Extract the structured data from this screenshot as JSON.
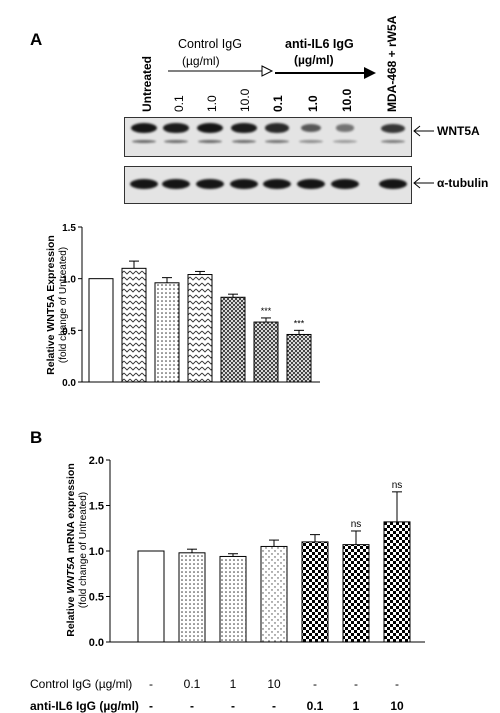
{
  "panel_a": {
    "letter": "A",
    "untreated_label": "Untreated",
    "control_group": "Control IgG",
    "control_unit": "(µg/ml)",
    "anti_group": "anti-IL6 IgG",
    "anti_unit": "(µg/ml)",
    "control_concs": [
      "0.1",
      "1.0",
      "10.0"
    ],
    "anti_concs": [
      "0.1",
      "1.0",
      "10.0"
    ],
    "last_lane_label": "MDA-468 + rW5A",
    "blot_labels": [
      "WNT5A",
      "α-tubulin"
    ],
    "wnt5a_band_intensity": [
      1.0,
      0.95,
      1.0,
      0.95,
      0.85,
      0.5,
      0.3,
      0.75
    ],
    "tubulin_band_intensity": [
      1.0,
      1.0,
      1.0,
      1.0,
      1.0,
      1.0,
      1.0,
      1.0
    ]
  },
  "panel_b": {
    "letter": "B",
    "row_labels": [
      "Control IgG (µg/ml)",
      "anti-IL6 IgG (µg/ml)"
    ],
    "control_row": [
      "-",
      "0.1",
      "1",
      "10",
      "-",
      "-",
      "-"
    ],
    "anti_row": [
      "-",
      "-",
      "-",
      "-",
      "0.1",
      "1",
      "10"
    ]
  },
  "chart_data": [
    {
      "type": "bar",
      "ylabel_line1": "Relative WNT5A Expression",
      "ylabel_line2": "(fold change of Untreated)",
      "ylim": [
        0.0,
        1.5
      ],
      "yticks": [
        "0.0",
        "0.5",
        "1.0",
        "1.5"
      ],
      "categories": [
        "Untreated",
        "Control IgG 0.1",
        "Control IgG 1.0",
        "Control IgG 10.0",
        "anti-IL6 IgG 0.1",
        "anti-IL6 IgG 1.0",
        "anti-IL6 IgG 10.0"
      ],
      "values": [
        1.0,
        1.1,
        0.96,
        1.04,
        0.82,
        0.58,
        0.46
      ],
      "errors": [
        0.0,
        0.07,
        0.05,
        0.03,
        0.03,
        0.04,
        0.04
      ],
      "annotations": [
        "",
        "",
        "",
        "",
        "",
        "***",
        "***"
      ]
    },
    {
      "type": "bar",
      "ylabel_prefix": "Relative ",
      "ylabel_italic": "WNT5A",
      "ylabel_suffix": " mRNA expression",
      "ylabel_line2": "(fold change of Untreated)",
      "ylim": [
        0.0,
        2.0
      ],
      "yticks": [
        "0.0",
        "0.5",
        "1.0",
        "1.5",
        "2.0"
      ],
      "categories": [
        "Untreated",
        "Control IgG 0.1",
        "Control IgG 1",
        "Control IgG 10",
        "anti-IL6 IgG 0.1",
        "anti-IL6 IgG 1",
        "anti-IL6 IgG 10"
      ],
      "values": [
        1.0,
        0.98,
        0.94,
        1.05,
        1.1,
        1.07,
        1.32
      ],
      "errors": [
        0.0,
        0.04,
        0.03,
        0.07,
        0.08,
        0.15,
        0.33
      ],
      "annotations": [
        "",
        "",
        "",
        "",
        "",
        "ns",
        "ns"
      ]
    }
  ]
}
